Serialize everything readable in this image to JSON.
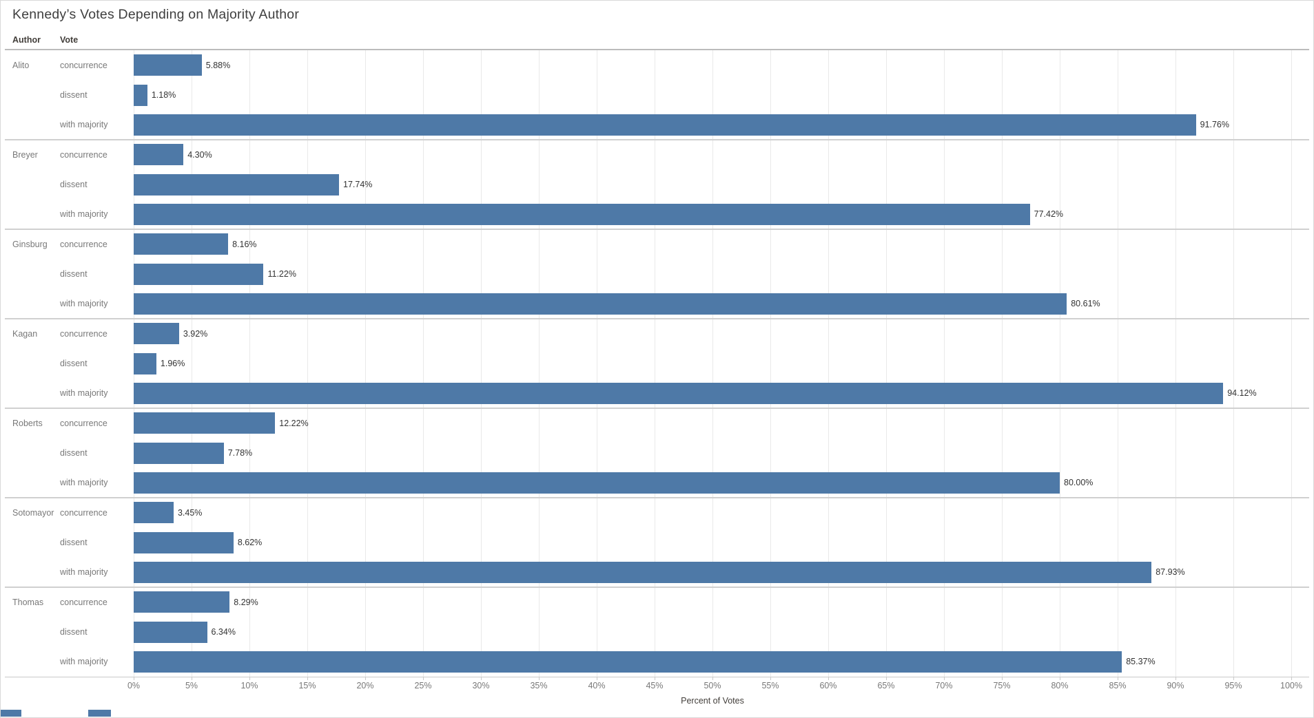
{
  "title": "Kennedy’s Votes Depending on Majority Author",
  "row_headers": {
    "author": "Author",
    "vote": "Vote"
  },
  "axis": {
    "title": "Percent of Votes",
    "min": 0,
    "max": 100,
    "step": 5
  },
  "colors": {
    "bar": "#4e79a7",
    "gridline": "#e9e9e9",
    "separator": "#d0d0d0",
    "label_gray": "#787878",
    "value_text": "#333333"
  },
  "chart_data": {
    "type": "bar",
    "orientation": "horizontal",
    "title": "Kennedy’s Votes Depending on Majority Author",
    "xlabel": "Percent of Votes",
    "xlim": [
      0,
      100
    ],
    "x_ticks": [
      "0%",
      "5%",
      "10%",
      "15%",
      "20%",
      "25%",
      "30%",
      "35%",
      "40%",
      "45%",
      "50%",
      "55%",
      "60%",
      "65%",
      "70%",
      "75%",
      "80%",
      "85%",
      "90%",
      "95%",
      "100%"
    ],
    "grid": true,
    "row_fields": [
      "Author",
      "Vote"
    ],
    "groups": [
      {
        "author": "Alito",
        "bars": [
          {
            "vote": "concurrence",
            "value": 5.88,
            "label": "5.88%"
          },
          {
            "vote": "dissent",
            "value": 1.18,
            "label": "1.18%"
          },
          {
            "vote": "with majority",
            "value": 91.76,
            "label": "91.76%"
          }
        ]
      },
      {
        "author": "Breyer",
        "bars": [
          {
            "vote": "concurrence",
            "value": 4.3,
            "label": "4.30%"
          },
          {
            "vote": "dissent",
            "value": 17.74,
            "label": "17.74%"
          },
          {
            "vote": "with majority",
            "value": 77.42,
            "label": "77.42%"
          }
        ]
      },
      {
        "author": "Ginsburg",
        "bars": [
          {
            "vote": "concurrence",
            "value": 8.16,
            "label": "8.16%"
          },
          {
            "vote": "dissent",
            "value": 11.22,
            "label": "11.22%"
          },
          {
            "vote": "with majority",
            "value": 80.61,
            "label": "80.61%"
          }
        ]
      },
      {
        "author": "Kagan",
        "bars": [
          {
            "vote": "concurrence",
            "value": 3.92,
            "label": "3.92%"
          },
          {
            "vote": "dissent",
            "value": 1.96,
            "label": "1.96%"
          },
          {
            "vote": "with majority",
            "value": 94.12,
            "label": "94.12%"
          }
        ]
      },
      {
        "author": "Roberts",
        "bars": [
          {
            "vote": "concurrence",
            "value": 12.22,
            "label": "12.22%"
          },
          {
            "vote": "dissent",
            "value": 7.78,
            "label": "7.78%"
          },
          {
            "vote": "with majority",
            "value": 80.0,
            "label": "80.00%"
          }
        ]
      },
      {
        "author": "Sotomayor",
        "bars": [
          {
            "vote": "concurrence",
            "value": 3.45,
            "label": "3.45%"
          },
          {
            "vote": "dissent",
            "value": 8.62,
            "label": "8.62%"
          },
          {
            "vote": "with majority",
            "value": 87.93,
            "label": "87.93%"
          }
        ]
      },
      {
        "author": "Thomas",
        "bars": [
          {
            "vote": "concurrence",
            "value": 8.29,
            "label": "8.29%"
          },
          {
            "vote": "dissent",
            "value": 6.34,
            "label": "6.34%"
          },
          {
            "vote": "with majority",
            "value": 85.37,
            "label": "85.37%"
          }
        ]
      }
    ]
  }
}
